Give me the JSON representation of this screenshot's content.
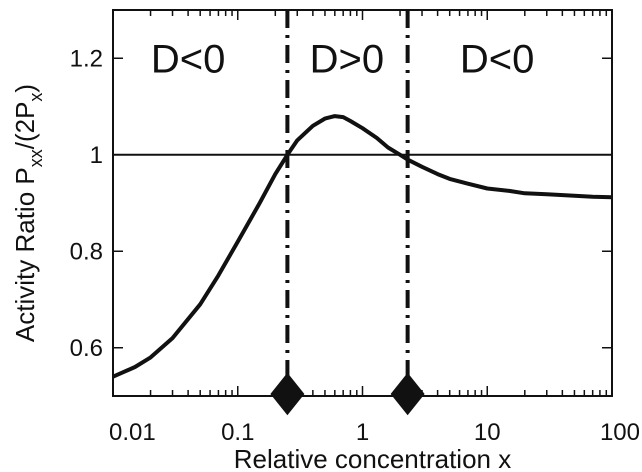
{
  "chart_data": {
    "type": "line",
    "title": "",
    "xlabel": "Relative concentration x",
    "ylabel_main": "Activity Ratio P",
    "ylabel_sub1": "xx",
    "ylabel_mid": "/(2P",
    "ylabel_sub2": "x",
    "ylabel_end": ")",
    "xscale": "log",
    "xlim": [
      0.01,
      100
    ],
    "ylim": [
      0.5,
      1.3
    ],
    "xticks": [
      0.01,
      0.1,
      1,
      10,
      100
    ],
    "xtick_labels": [
      "0.01",
      "0.1",
      "1",
      "10",
      "100"
    ],
    "yticks": [
      0.6,
      0.8,
      1.0,
      1.2
    ],
    "ytick_labels": [
      "0.6",
      "0.8",
      "1",
      "1.2"
    ],
    "grid": false,
    "series": [
      {
        "x": [
          0.01,
          0.015,
          0.02,
          0.03,
          0.05,
          0.07,
          0.1,
          0.15,
          0.2,
          0.25,
          0.3,
          0.4,
          0.5,
          0.6,
          0.7,
          0.8,
          1.0,
          1.3,
          1.6,
          2.0,
          2.3,
          3.0,
          4.0,
          5.0,
          7.0,
          10,
          15,
          20,
          30,
          50,
          70,
          100
        ],
        "y": [
          0.54,
          0.56,
          0.58,
          0.62,
          0.69,
          0.75,
          0.82,
          0.9,
          0.96,
          1.0,
          1.03,
          1.06,
          1.075,
          1.08,
          1.078,
          1.07,
          1.055,
          1.035,
          1.015,
          1.0,
          0.99,
          0.975,
          0.96,
          0.95,
          0.94,
          0.93,
          0.925,
          0.92,
          0.918,
          0.915,
          0.913,
          0.912
        ]
      }
    ],
    "reference_line_y": 1.0,
    "boundaries_x": [
      0.25,
      2.3
    ],
    "regions": [
      {
        "label": "D<0",
        "x": 0.04
      },
      {
        "label": "D>0",
        "x": 0.75
      },
      {
        "label": "D<0",
        "x": 12
      }
    ],
    "region_label_y": 1.2,
    "marker_shape": "diamond",
    "line_color": "#111111"
  }
}
